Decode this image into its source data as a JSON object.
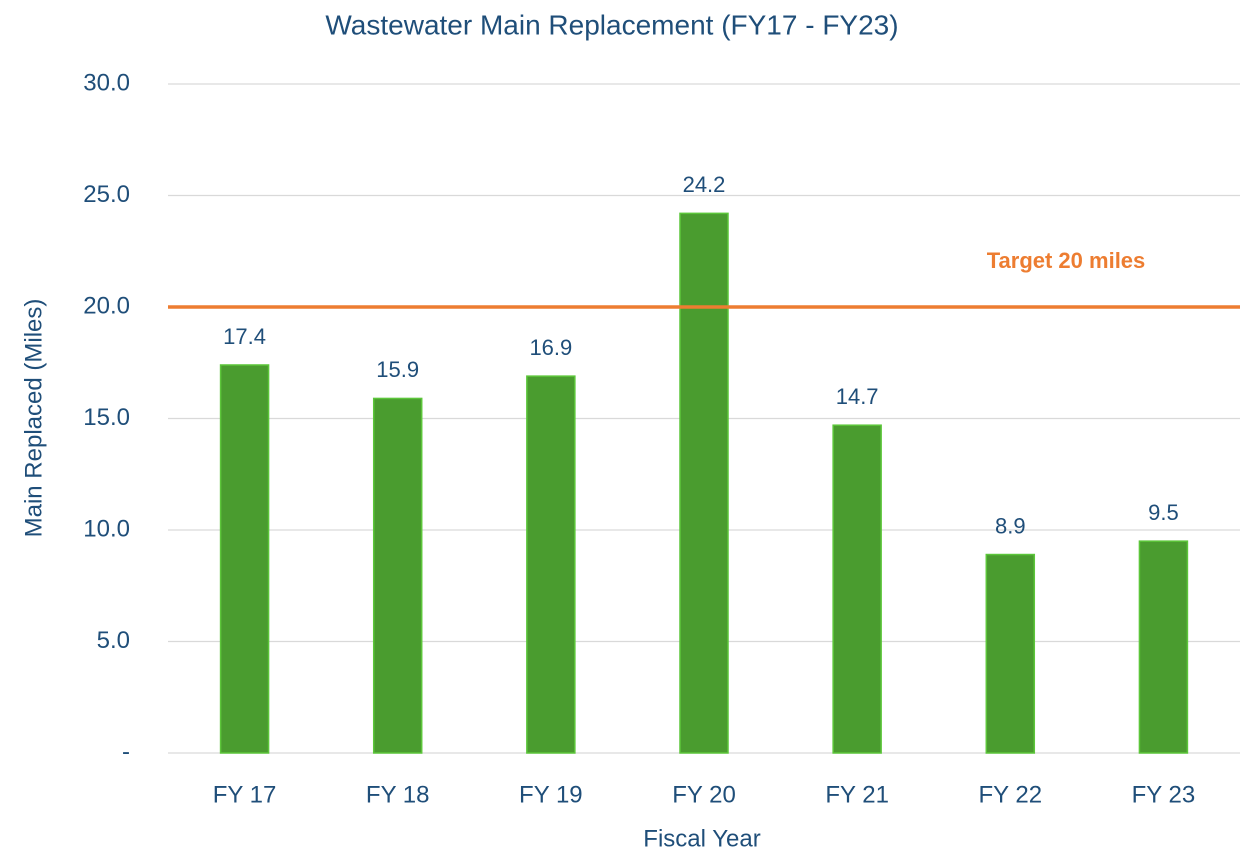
{
  "chart_data": {
    "type": "bar",
    "title": "Wastewater Main Replacement (FY17 - FY23)",
    "x_label": "Fiscal Year",
    "y_label": "Main Replaced (Miles)",
    "categories": [
      "FY 17",
      "FY 18",
      "FY 19",
      "FY 20",
      "FY 21",
      "FY 22",
      "FY 23"
    ],
    "values": [
      17.4,
      15.9,
      16.9,
      24.2,
      14.7,
      8.9,
      9.5
    ],
    "color": "#4a9c2f",
    "ylim": [
      0,
      30
    ],
    "yticks": [
      {
        "value": 0,
        "label": "-"
      },
      {
        "value": 5,
        "label": "5.0"
      },
      {
        "value": 10,
        "label": "10.0"
      },
      {
        "value": 15,
        "label": "15.0"
      },
      {
        "value": 20,
        "label": "20.0"
      },
      {
        "value": 25,
        "label": "25.0"
      },
      {
        "value": 30,
        "label": "30.0"
      }
    ],
    "grid": true,
    "target": {
      "value": 20,
      "label": "Target 20 miles",
      "color": "#ed7d31"
    }
  }
}
